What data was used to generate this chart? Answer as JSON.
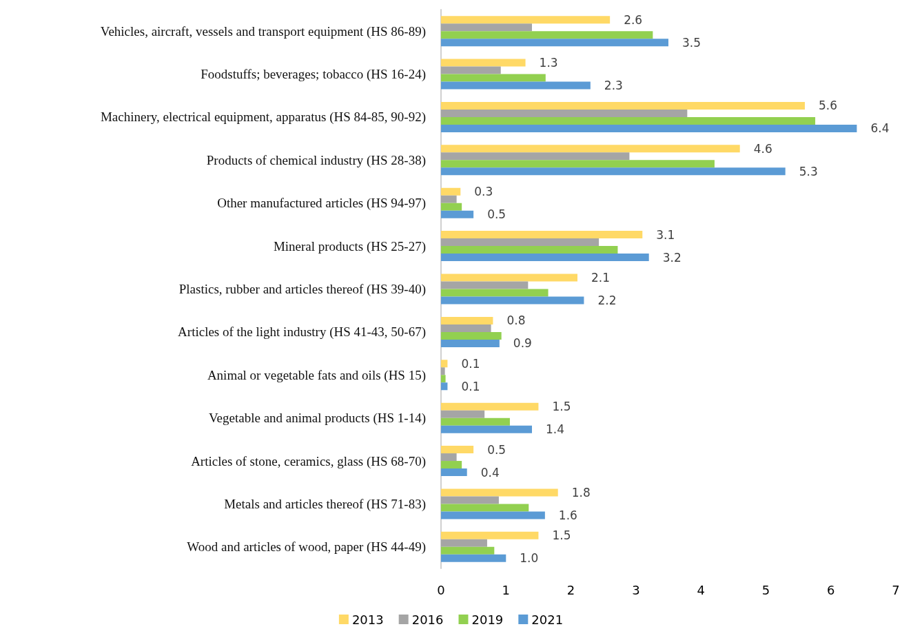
{
  "chart_data": {
    "type": "bar",
    "orientation": "horizontal",
    "categories": [
      "Vehicles, aircraft, vessels and transport equipment (HS 86-89)",
      "Foodstuffs; beverages; tobacco (HS 16-24)",
      "Machinery, electrical equipment, apparatus (HS 84-85, 90-92)",
      "Products of chemical industry (HS 28-38)",
      "Other manufactured articles (HS 94-97)",
      "Mineral products (HS 25-27)",
      "Plastics, rubber and articles thereof (HS 39-40)",
      "Articles of the light industry (HS 41-43, 50-67)",
      "Animal or vegetable fats and oils (HS 15)",
      "Vegetable and animal products (HS 1-14)",
      "Articles of stone, ceramics, glass (HS 68-70)",
      "Metals and articles thereof (HS 71-83)",
      "Wood and articles of wood, paper (HS 44-49)"
    ],
    "series": [
      {
        "name": "2013",
        "color": "#ffd966",
        "values": [
          2.6,
          1.3,
          5.6,
          4.6,
          0.3,
          3.1,
          2.1,
          0.8,
          0.1,
          1.5,
          0.5,
          1.8,
          1.5
        ],
        "value_labels": [
          "2.6",
          "1.3",
          "5.6",
          "4.6",
          "0.3",
          "3.1",
          "2.1",
          "0.8",
          "0.1",
          "1.5",
          "0.5",
          "1.8",
          "1.5"
        ]
      },
      {
        "name": "2016",
        "color": "#a5a5a5",
        "values": [
          1.4,
          0.92,
          3.79,
          2.9,
          0.24,
          2.43,
          1.34,
          0.77,
          0.06,
          0.67,
          0.24,
          0.89,
          0.71
        ]
      },
      {
        "name": "2019",
        "color": "#92d050",
        "values": [
          3.26,
          1.61,
          5.76,
          4.21,
          0.32,
          2.72,
          1.65,
          0.93,
          0.07,
          1.06,
          0.32,
          1.35,
          0.82
        ]
      },
      {
        "name": "2021",
        "color": "#5b9bd5",
        "values": [
          3.5,
          2.3,
          6.4,
          5.3,
          0.5,
          3.2,
          2.2,
          0.9,
          0.1,
          1.4,
          0.4,
          1.6,
          1.0
        ],
        "value_labels": [
          "3.5",
          "2.3",
          "6.4",
          "5.3",
          "0.5",
          "3.2",
          "2.2",
          "0.9",
          "0.1",
          "1.4",
          "0.4",
          "1.6",
          "1.0"
        ]
      }
    ],
    "xlim": [
      0,
      7
    ],
    "xticks": [
      0,
      1,
      2,
      3,
      4,
      5,
      6,
      7
    ],
    "grid": false,
    "legend": "bottom"
  }
}
